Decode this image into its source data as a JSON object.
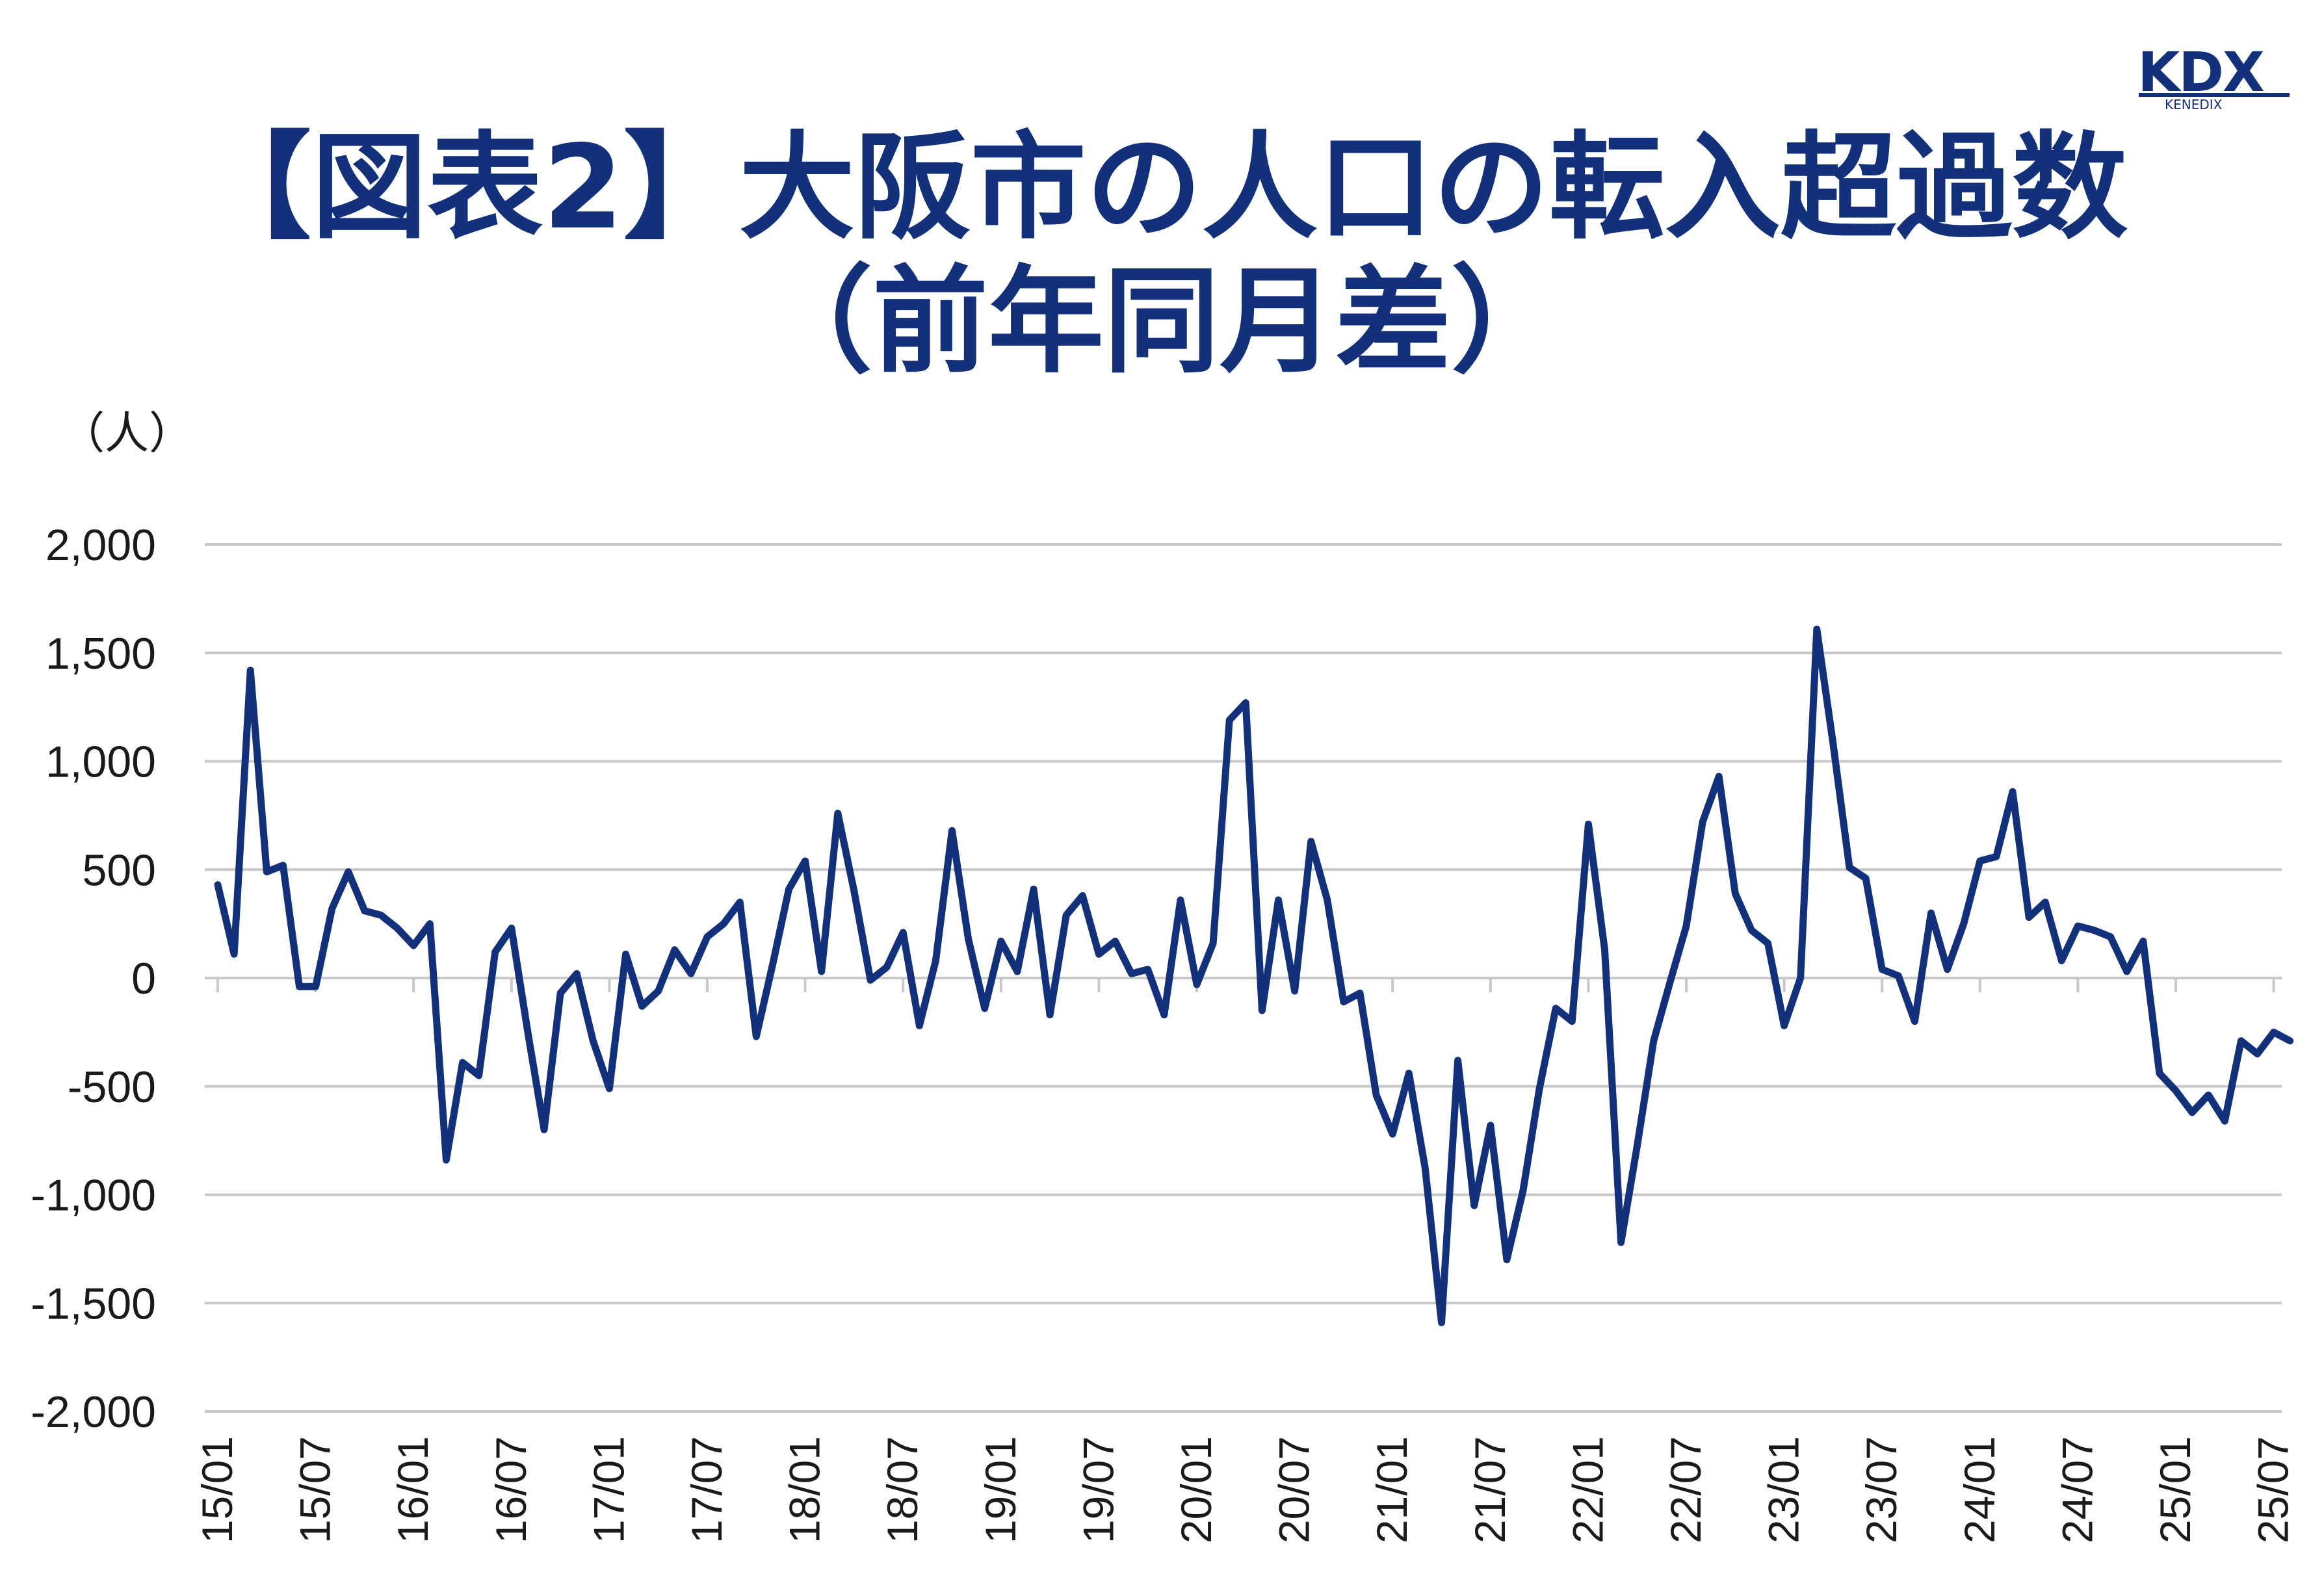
{
  "header": {
    "title_line1": "【図表2】大阪市の人口の転入超過数",
    "title_line2": "（前年同月差）",
    "logo_text": "KDX",
    "logo_subtext": "KENEDIX",
    "accent_color": "#13307a"
  },
  "chart_data": {
    "type": "line",
    "title": "【図表2】大阪市の人口の転入超過数（前年同月差）",
    "ylabel": "（人）",
    "xlabel": "",
    "ylim": [
      -2000,
      2000
    ],
    "yticks": [
      2000,
      1500,
      1000,
      500,
      0,
      -500,
      -1000,
      -1500,
      -2000
    ],
    "ytick_labels": [
      "2,000",
      "1,500",
      "1,000",
      "500",
      "0",
      "-500",
      "-1,000",
      "-1,500",
      "-2,000"
    ],
    "xtick_labels": [
      "15/01",
      "15/07",
      "16/01",
      "16/07",
      "17/01",
      "17/07",
      "18/01",
      "18/07",
      "19/01",
      "19/07",
      "20/01",
      "20/07",
      "21/01",
      "21/07",
      "22/01",
      "22/07",
      "23/01",
      "23/07",
      "24/01",
      "24/07",
      "25/01",
      "25/07"
    ],
    "grid": true,
    "start": "2015-01",
    "series": [
      {
        "name": "大阪市 転入超過数 前年同月差",
        "color": "#13307a",
        "values": [
          430,
          110,
          1420,
          490,
          520,
          -40,
          -40,
          320,
          490,
          310,
          290,
          230,
          150,
          250,
          -840,
          -390,
          -450,
          120,
          230,
          -250,
          -700,
          -70,
          20,
          -290,
          -510,
          110,
          -130,
          -60,
          130,
          20,
          190,
          250,
          350,
          -270,
          60,
          410,
          540,
          30,
          760,
          400,
          -10,
          50,
          210,
          -220,
          80,
          680,
          180,
          -140,
          170,
          30,
          410,
          -170,
          290,
          380,
          110,
          170,
          20,
          40,
          -170,
          360,
          -30,
          160,
          1190,
          1270,
          -150,
          360,
          -60,
          630,
          360,
          -110,
          -70,
          -540,
          -720,
          -440,
          -880,
          -1590,
          -380,
          -1050,
          -680,
          -1300,
          -980,
          -510,
          -140,
          -200,
          710,
          130,
          -1220,
          -770,
          -290,
          -20,
          240,
          720,
          930,
          390,
          220,
          160,
          -220,
          0,
          1610,
          1080,
          510,
          460,
          40,
          10,
          -200,
          300,
          40,
          250,
          540,
          560,
          860,
          280,
          350,
          80,
          240,
          220,
          190,
          30,
          170,
          -440,
          -520,
          -620,
          -540,
          -660,
          -290,
          -350,
          -250,
          -290
        ]
      }
    ]
  }
}
